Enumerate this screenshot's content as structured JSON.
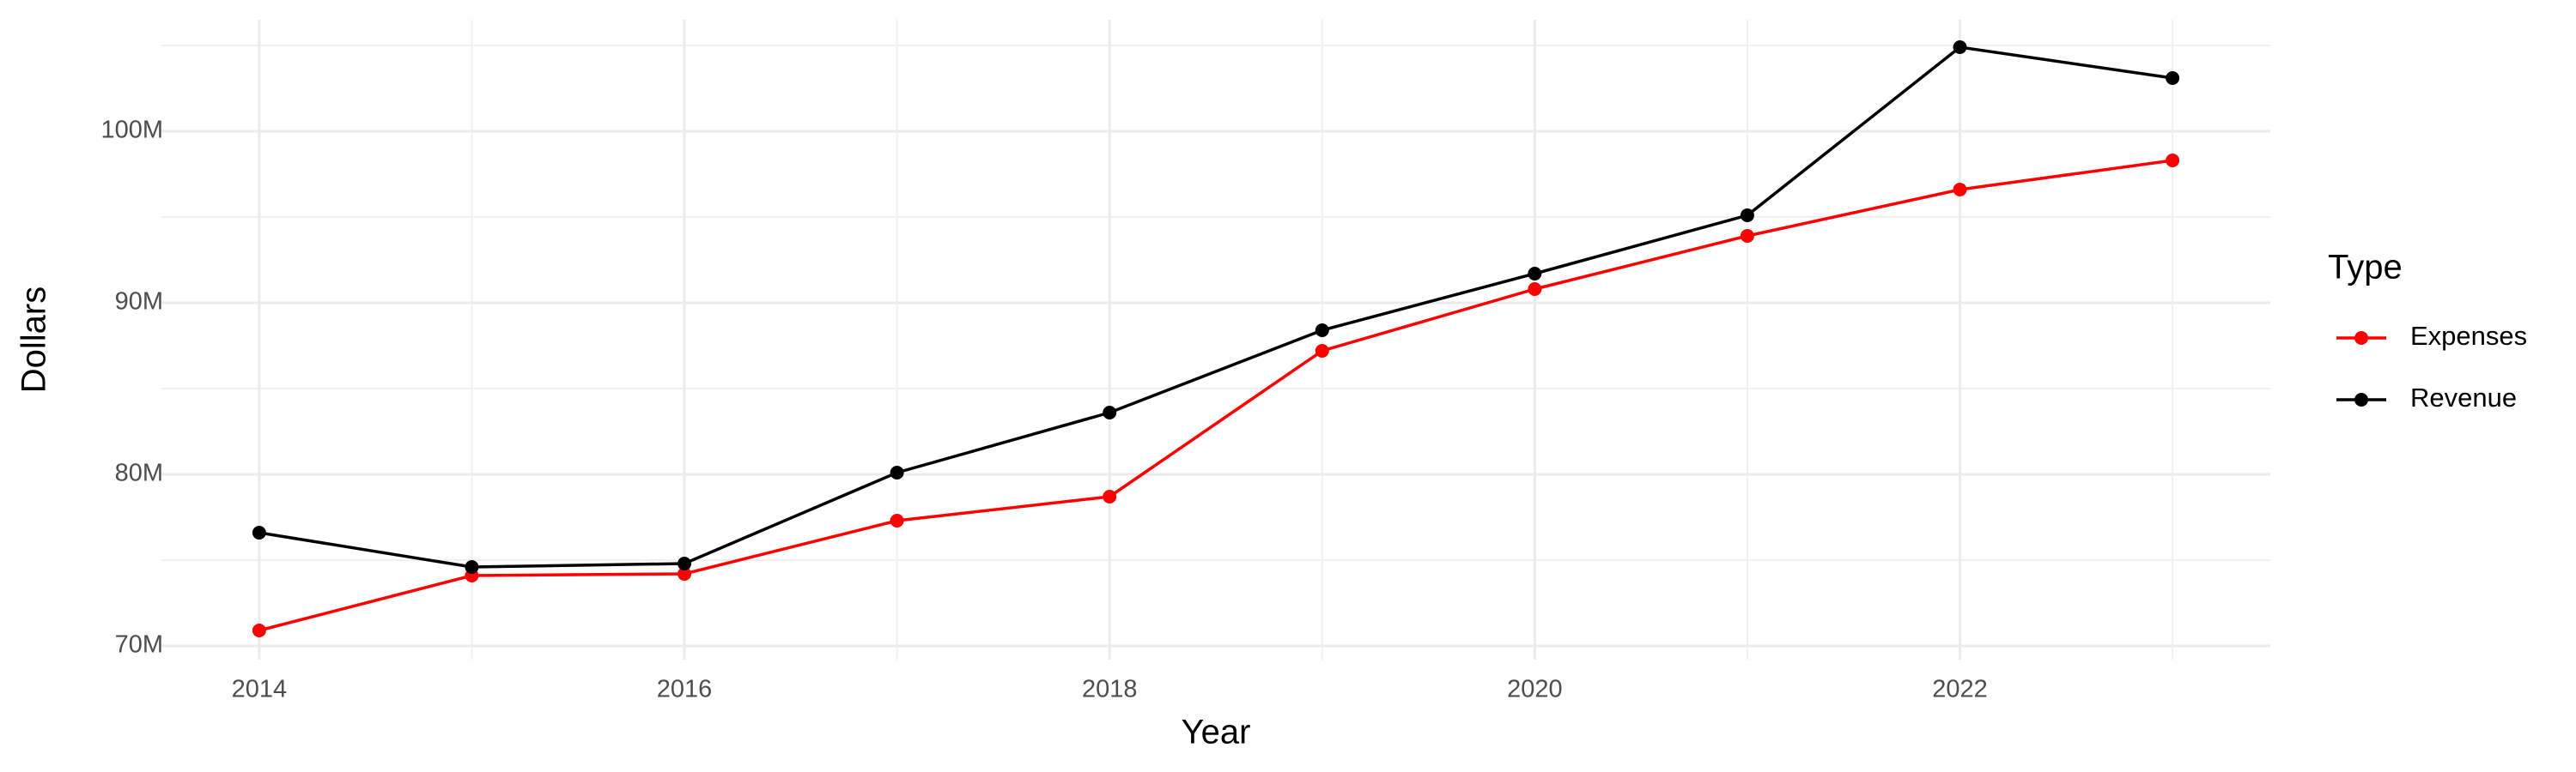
{
  "chart_data": {
    "type": "line",
    "x_label": "Year",
    "y_label": "Dollars",
    "legend_title": "Type",
    "legend_position": "right",
    "x": [
      2014,
      2015,
      2016,
      2017,
      2018,
      2019,
      2020,
      2021,
      2022,
      2023
    ],
    "series": [
      {
        "name": "Expenses",
        "color": "#ff0000",
        "values": [
          70900000,
          74100000,
          74200000,
          77300000,
          78700000,
          87200000,
          90800000,
          93900000,
          96600000,
          98300000
        ]
      },
      {
        "name": "Revenue",
        "color": "#000000",
        "values": [
          76600000,
          74600000,
          74800000,
          80100000,
          83600000,
          88400000,
          91700000,
          95100000,
          104900000,
          103100000
        ]
      }
    ],
    "xlim": [
      2013.54,
      2023.46
    ],
    "xticks": [
      2014,
      2016,
      2018,
      2020,
      2022
    ],
    "ylim": [
      69200000,
      106500000
    ],
    "yticks": [
      {
        "value": 70000000,
        "label": "70M"
      },
      {
        "value": 80000000,
        "label": "80M"
      },
      {
        "value": 90000000,
        "label": "90M"
      },
      {
        "value": 100000000,
        "label": "100M"
      }
    ],
    "grid": true
  }
}
